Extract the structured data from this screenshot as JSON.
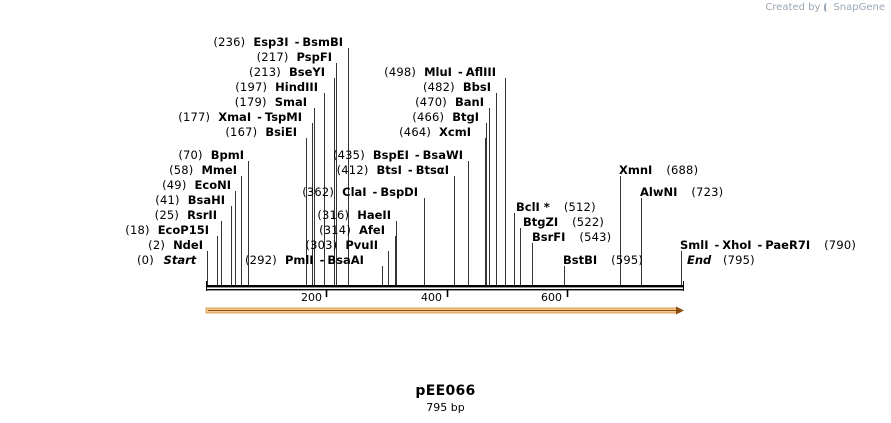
{
  "app": {
    "brand": "Created by",
    "brand_name": "SnapGene"
  },
  "plasmid": {
    "name": "pEE066",
    "size_label": "795 bp",
    "length": 795
  },
  "axis": {
    "ticks": [
      200,
      400,
      600
    ],
    "start_label": "Start",
    "start_pos": "(0)",
    "end_label": "End",
    "end_pos": "(795)"
  },
  "colors": {
    "feature_fill": "#f5c88c",
    "feature_stroke": "#d08a3c",
    "feature_arrow": "#8a4a10",
    "line": "#000000"
  },
  "sites": [
    {
      "id": "ndei",
      "pos": 2,
      "left": [
        {
          "n": "(2)",
          "e": "NdeI"
        }
      ]
    },
    {
      "id": "ecop15i",
      "pos": 18,
      "left": [
        {
          "n": "(18)",
          "e": "EcoP15I"
        }
      ]
    },
    {
      "id": "rsrii",
      "pos": 25,
      "left": [
        {
          "n": "(25)",
          "e": "RsrII"
        }
      ]
    },
    {
      "id": "bsahi",
      "pos": 41,
      "left": [
        {
          "n": "(41)",
          "e": "BsaHI"
        }
      ]
    },
    {
      "id": "econi",
      "pos": 49,
      "left": [
        {
          "n": "(49)",
          "e": "EcoNI"
        }
      ]
    },
    {
      "id": "mmei",
      "pos": 58,
      "left": [
        {
          "n": "(58)",
          "e": "MmeI"
        }
      ]
    },
    {
      "id": "bpmi",
      "pos": 70,
      "left": [
        {
          "n": "(70)",
          "e": "BpmI"
        }
      ]
    },
    {
      "id": "bsiei",
      "pos": 167,
      "left": [
        {
          "n": "(167)",
          "e": "BsiEI"
        }
      ]
    },
    {
      "id": "xmai",
      "pos": 177,
      "left": [
        {
          "n": "(177)",
          "e": "XmaI"
        },
        {
          "e": "TspMI"
        }
      ]
    },
    {
      "id": "smai",
      "pos": 179,
      "left": [
        {
          "n": "(179)",
          "e": "SmaI"
        }
      ]
    },
    {
      "id": "hindiii",
      "pos": 197,
      "left": [
        {
          "n": "(197)",
          "e": "HindIII"
        }
      ]
    },
    {
      "id": "bseyi",
      "pos": 213,
      "left": [
        {
          "n": "(213)",
          "e": "BseYI"
        }
      ]
    },
    {
      "id": "pspfi",
      "pos": 217,
      "left": [
        {
          "n": "(217)",
          "e": "PspFI"
        }
      ]
    },
    {
      "id": "esp3i",
      "pos": 236,
      "left": [
        {
          "n": "(236)",
          "e": "Esp3I"
        },
        {
          "e": "BsmBI"
        }
      ]
    },
    {
      "id": "pmli",
      "pos": 292,
      "left": [
        {
          "n": "(292)",
          "e": "PmlI"
        },
        {
          "e": "BsaAI"
        }
      ]
    },
    {
      "id": "pvuii",
      "pos": 303,
      "left": [
        {
          "n": "(303)",
          "e": "PvuII"
        }
      ]
    },
    {
      "id": "afei",
      "pos": 314,
      "left": [
        {
          "n": "(314)",
          "e": "AfeI"
        }
      ]
    },
    {
      "id": "haeii",
      "pos": 316,
      "left": [
        {
          "n": "(316)",
          "e": "HaeII"
        }
      ]
    },
    {
      "id": "clai",
      "pos": 362,
      "left": [
        {
          "n": "(362)",
          "e": "ClaI"
        },
        {
          "e": "BspDI"
        }
      ]
    },
    {
      "id": "btsi",
      "pos": 412,
      "left": [
        {
          "n": "(412)",
          "e": "BtsI"
        },
        {
          "e": "BtsαI"
        }
      ]
    },
    {
      "id": "bspei",
      "pos": 435,
      "left": [
        {
          "n": "(435)",
          "e": "BspEI"
        },
        {
          "e": "BsaWI"
        }
      ]
    },
    {
      "id": "xcmi",
      "pos": 464,
      "left": [
        {
          "n": "(464)",
          "e": "XcmI"
        }
      ]
    },
    {
      "id": "btgi",
      "pos": 466,
      "left": [
        {
          "n": "(466)",
          "e": "BtgI"
        }
      ]
    },
    {
      "id": "bani",
      "pos": 470,
      "left": [
        {
          "n": "(470)",
          "e": "BanI"
        }
      ]
    },
    {
      "id": "bbsi",
      "pos": 482,
      "left": [
        {
          "n": "(482)",
          "e": "BbsI"
        }
      ]
    },
    {
      "id": "mlui",
      "pos": 498,
      "left": [
        {
          "n": "(498)",
          "e": "MluI"
        },
        {
          "e": "AflIII"
        }
      ]
    },
    {
      "id": "bcli",
      "pos": 512,
      "right": [
        {
          "e": "BclI *",
          "n": "(512)"
        }
      ]
    },
    {
      "id": "btgzi",
      "pos": 522,
      "right": [
        {
          "e": "BtgZI",
          "n": "(522)"
        }
      ]
    },
    {
      "id": "bsrfi",
      "pos": 543,
      "right": [
        {
          "e": "BsrFI",
          "n": "(543)"
        }
      ]
    },
    {
      "id": "bstbi",
      "pos": 595,
      "right": [
        {
          "e": "BstBI",
          "n": "(595)"
        }
      ]
    },
    {
      "id": "xmni",
      "pos": 688,
      "right": [
        {
          "e": "XmnI",
          "n": "(688)"
        }
      ]
    },
    {
      "id": "alwni",
      "pos": 723,
      "right": [
        {
          "e": "AlwNI",
          "n": "(723)"
        }
      ]
    },
    {
      "id": "smli",
      "pos": 790,
      "right": [
        {
          "e": "SmlI"
        },
        {
          "e": "XhoI"
        },
        {
          "e": "PaeR7I",
          "n": "(790)"
        }
      ]
    }
  ]
}
